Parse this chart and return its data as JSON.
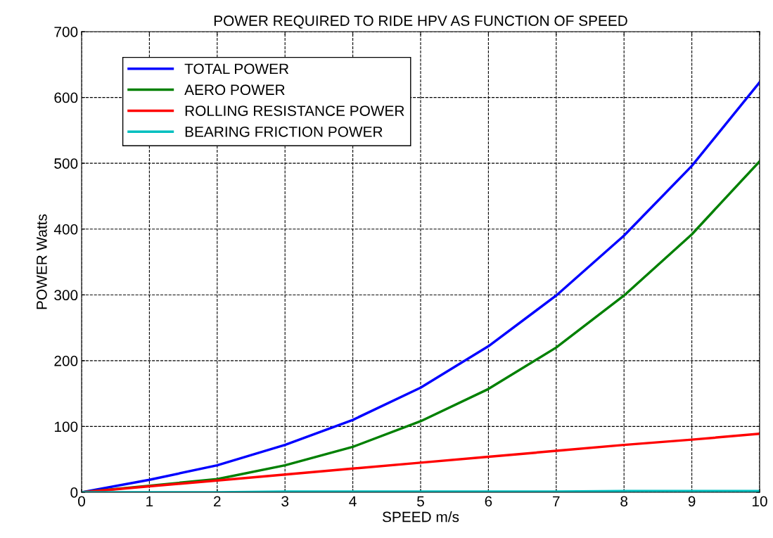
{
  "chart_data": {
    "type": "line",
    "title": "POWER REQUIRED TO RIDE HPV AS FUNCTION OF SPEED",
    "xlabel": "SPEED m/s",
    "ylabel": "POWER Watts",
    "x": [
      0,
      1,
      2,
      3,
      4,
      5,
      6,
      7,
      8,
      9,
      10
    ],
    "series": [
      {
        "name": "TOTAL POWER",
        "color": "#0000ff",
        "values": [
          0,
          19,
          41,
          72,
          110,
          159,
          222,
          299,
          390,
          496,
          623
        ]
      },
      {
        "name": "AERO POWER",
        "color": "#008000",
        "values": [
          0,
          10,
          20,
          41,
          69,
          108,
          157,
          220,
          299,
          392,
          503
        ]
      },
      {
        "name": "ROLLING RESISTANCE POWER",
        "color": "#ff0000",
        "values": [
          0,
          9,
          18,
          27,
          36,
          45,
          54,
          63,
          72,
          80,
          89
        ]
      },
      {
        "name": "BEARING FRICTION POWER",
        "color": "#00bfbf",
        "values": [
          0,
          0,
          0,
          1,
          1,
          1,
          1,
          1,
          2,
          2,
          2
        ]
      }
    ],
    "xlim": [
      0,
      10
    ],
    "ylim": [
      0,
      700
    ],
    "xticks": [
      0,
      1,
      2,
      3,
      4,
      5,
      6,
      7,
      8,
      9,
      10
    ],
    "yticks": [
      0,
      100,
      200,
      300,
      400,
      500,
      600,
      700
    ],
    "grid": true,
    "legend": "top left",
    "line_style": "solid",
    "marker": "none"
  }
}
